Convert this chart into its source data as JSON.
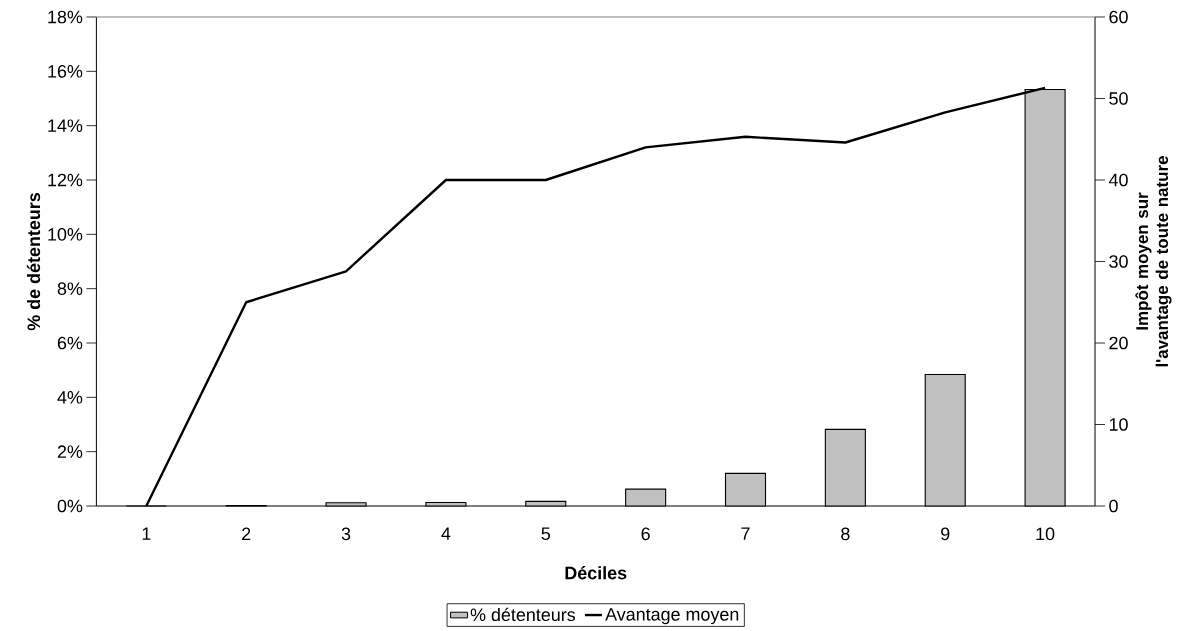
{
  "chart_data": {
    "type": "bar",
    "xlabel": "Déciles",
    "ylabel": "% de détenteurs",
    "y2label": "Impôt moyen sur l'avantage de toute nature",
    "categories": [
      "1",
      "2",
      "3",
      "4",
      "5",
      "6",
      "7",
      "8",
      "9",
      "10"
    ],
    "series": [
      {
        "name": "% détenteurs",
        "color": "#c0c0c0",
        "values": [
          0,
          0.02,
          0.12,
          0.13,
          0.17,
          0.62,
          1.2,
          2.82,
          4.84,
          15.33
        ]
      },
      {
        "name": "Avantage moyen",
        "type": "line",
        "axis": "y2",
        "color": "#000000",
        "values": [
          0,
          25,
          28.8,
          40,
          40,
          44,
          45.3,
          44.6,
          48.3,
          51.3
        ]
      }
    ],
    "ylim": [
      0,
      18
    ],
    "yticks": [
      {
        "value": 0,
        "label": "0%"
      },
      {
        "value": 2,
        "label": "2%"
      },
      {
        "value": 4,
        "label": "4%"
      },
      {
        "value": 6,
        "label": "6%"
      },
      {
        "value": 8,
        "label": "8%"
      },
      {
        "value": 10,
        "label": "10%"
      },
      {
        "value": 12,
        "label": "12%"
      },
      {
        "value": 14,
        "label": "14%"
      },
      {
        "value": 16,
        "label": "16%"
      },
      {
        "value": 18,
        "label": "18%"
      }
    ],
    "y2lim": [
      0,
      60
    ],
    "y2ticks": [
      0,
      10,
      20,
      30,
      40,
      50,
      60
    ],
    "legend": "bottom"
  }
}
